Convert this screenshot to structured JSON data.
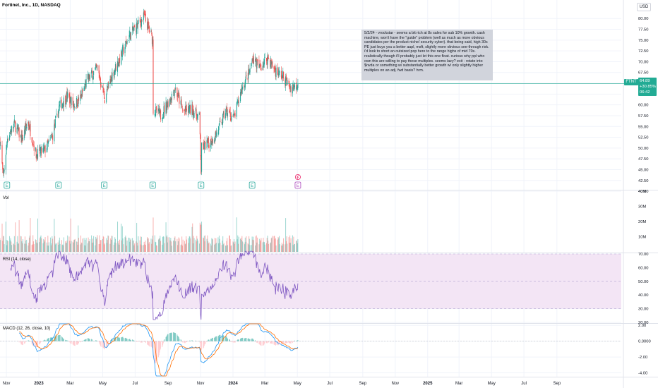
{
  "header": {
    "title": "Fortinet, Inc., 1D, NASDAQ",
    "currency": "USD"
  },
  "note": {
    "text": "5/2/24 - vrockstar - seems a bit rich at 8x sales for sub 10% growth. cash machine, won't have the \"guide\" problem (well as much as more obvious candidates per the product niche/ security cyber). that being said, high 30s PE just buys you a better aapl, msft, slightly more obvious see-through risk. i'd look to short an outsized pop here to the range highs of mid 70s. realistically though i'll probably just let this one float. curious why ppl who own this are willing to pay these multiples. seems lazy? exit - rotate into $nvda or something w/ substantially better growth w/ only slightly higher multiples on an adj. fwd basis? hrm."
  },
  "last_price": {
    "ticker": "FTNT",
    "price": "64.89",
    "change": "+30.85%",
    "countdown": "06:42"
  },
  "panes": {
    "volume_label": "Vol",
    "rsi_label": "RSI (14, close)",
    "macd_label": "MACD (12, 26, close, 10)"
  },
  "event_markers": {
    "earnings_letter": "E",
    "earnings_dates": [
      "2022-11-02",
      "2023-02-07",
      "2023-05-04",
      "2023-08-03",
      "2023-11-02",
      "2024-02-06",
      "2024-05-02"
    ]
  },
  "colors": {
    "up": "#26a69a",
    "down": "#ef5350",
    "rsi_line": "#7e57c2",
    "rsi_band": "#f3e5f5",
    "macd_line": "#2196f3",
    "signal_line": "#ff6d00",
    "price_line": "#22ab94",
    "earnings_marker": "#26a69a",
    "earnings_marker_upcoming": "#ab47bc"
  },
  "chart_data": {
    "type": "candlestick",
    "x_axis": {
      "type": "date",
      "range": [
        "2022-10-20",
        "2025-12-31"
      ],
      "tick_labels": [
        {
          "date": "2022-11-01",
          "label": "Nov"
        },
        {
          "date": "2023-01-01",
          "label": "2023"
        },
        {
          "date": "2023-03-01",
          "label": "Mar"
        },
        {
          "date": "2023-05-01",
          "label": "May"
        },
        {
          "date": "2023-07-01",
          "label": "Jul"
        },
        {
          "date": "2023-09-01",
          "label": "Sep"
        },
        {
          "date": "2023-11-01",
          "label": "Nov"
        },
        {
          "date": "2024-01-01",
          "label": "2024"
        },
        {
          "date": "2024-03-01",
          "label": "Mar"
        },
        {
          "date": "2024-05-01",
          "label": "May"
        },
        {
          "date": "2024-07-01",
          "label": "Jul"
        },
        {
          "date": "2024-09-01",
          "label": "Sep"
        },
        {
          "date": "2024-11-01",
          "label": "Nov"
        },
        {
          "date": "2025-01-01",
          "label": "2025"
        },
        {
          "date": "2025-03-01",
          "label": "Mar"
        },
        {
          "date": "2025-05-01",
          "label": "May"
        },
        {
          "date": "2025-07-01",
          "label": "Jul"
        },
        {
          "date": "2025-09-01",
          "label": "Sep"
        }
      ]
    },
    "price_pane": {
      "ylim": [
        40.5,
        82.0
      ],
      "tick_labels": [
        "80.00",
        "77.50",
        "75.00",
        "72.50",
        "70.00",
        "67.50",
        "65.00",
        "62.50",
        "60.00",
        "57.50",
        "55.00",
        "52.50",
        "50.00",
        "47.50",
        "45.00",
        "42.50",
        "40.00"
      ],
      "last_price": 64.89,
      "approx_close_path": [
        {
          "date": "2022-10-20",
          "close": 52.0
        },
        {
          "date": "2022-10-26",
          "close": 43.0
        },
        {
          "date": "2022-11-03",
          "close": 52.5
        },
        {
          "date": "2022-11-16",
          "close": 55.5
        },
        {
          "date": "2022-11-30",
          "close": 52.0
        },
        {
          "date": "2022-12-12",
          "close": 56.0
        },
        {
          "date": "2022-12-27",
          "close": 48.5
        },
        {
          "date": "2023-01-12",
          "close": 49.5
        },
        {
          "date": "2023-01-26",
          "close": 52.5
        },
        {
          "date": "2023-02-08",
          "close": 59.5
        },
        {
          "date": "2023-02-23",
          "close": 62.0
        },
        {
          "date": "2023-03-08",
          "close": 60.0
        },
        {
          "date": "2023-03-20",
          "close": 61.5
        },
        {
          "date": "2023-04-03",
          "close": 66.0
        },
        {
          "date": "2023-04-21",
          "close": 68.5
        },
        {
          "date": "2023-05-05",
          "close": 61.5
        },
        {
          "date": "2023-05-19",
          "close": 67.0
        },
        {
          "date": "2023-06-05",
          "close": 71.5
        },
        {
          "date": "2023-06-20",
          "close": 76.0
        },
        {
          "date": "2023-07-03",
          "close": 78.0
        },
        {
          "date": "2023-07-18",
          "close": 80.5
        },
        {
          "date": "2023-08-03",
          "close": 75.0
        },
        {
          "date": "2023-08-04",
          "close": 59.0
        },
        {
          "date": "2023-08-18",
          "close": 57.5
        },
        {
          "date": "2023-09-05",
          "close": 61.5
        },
        {
          "date": "2023-09-14",
          "close": 64.0
        },
        {
          "date": "2023-09-29",
          "close": 58.5
        },
        {
          "date": "2023-10-16",
          "close": 59.0
        },
        {
          "date": "2023-10-30",
          "close": 57.0
        },
        {
          "date": "2023-11-02",
          "close": 44.5
        },
        {
          "date": "2023-11-03",
          "close": 50.0
        },
        {
          "date": "2023-11-20",
          "close": 51.5
        },
        {
          "date": "2023-12-04",
          "close": 54.0
        },
        {
          "date": "2023-12-18",
          "close": 58.5
        },
        {
          "date": "2024-01-03",
          "close": 57.0
        },
        {
          "date": "2024-01-18",
          "close": 64.0
        },
        {
          "date": "2024-02-01",
          "close": 67.5
        },
        {
          "date": "2024-02-07",
          "close": 71.0
        },
        {
          "date": "2024-02-20",
          "close": 68.5
        },
        {
          "date": "2024-03-06",
          "close": 71.0
        },
        {
          "date": "2024-03-20",
          "close": 68.0
        },
        {
          "date": "2024-04-04",
          "close": 66.5
        },
        {
          "date": "2024-04-18",
          "close": 64.0
        },
        {
          "date": "2024-05-02",
          "close": 64.89
        }
      ]
    },
    "volume_pane": {
      "ylim": [
        0,
        40
      ],
      "tick_labels": [
        "40M",
        "30M",
        "20M",
        "10M"
      ]
    },
    "rsi_pane": {
      "ylim": [
        20,
        70
      ],
      "band": [
        30,
        70
      ],
      "tick_labels": [
        "70.00",
        "60.00",
        "50.00",
        "40.00",
        "30.00",
        "20.00"
      ]
    },
    "macd_pane": {
      "ylim": [
        -4.4,
        2.2
      ],
      "tick_labels": [
        "2.00",
        "0.0000",
        "-2.00",
        "-4.00"
      ]
    }
  }
}
